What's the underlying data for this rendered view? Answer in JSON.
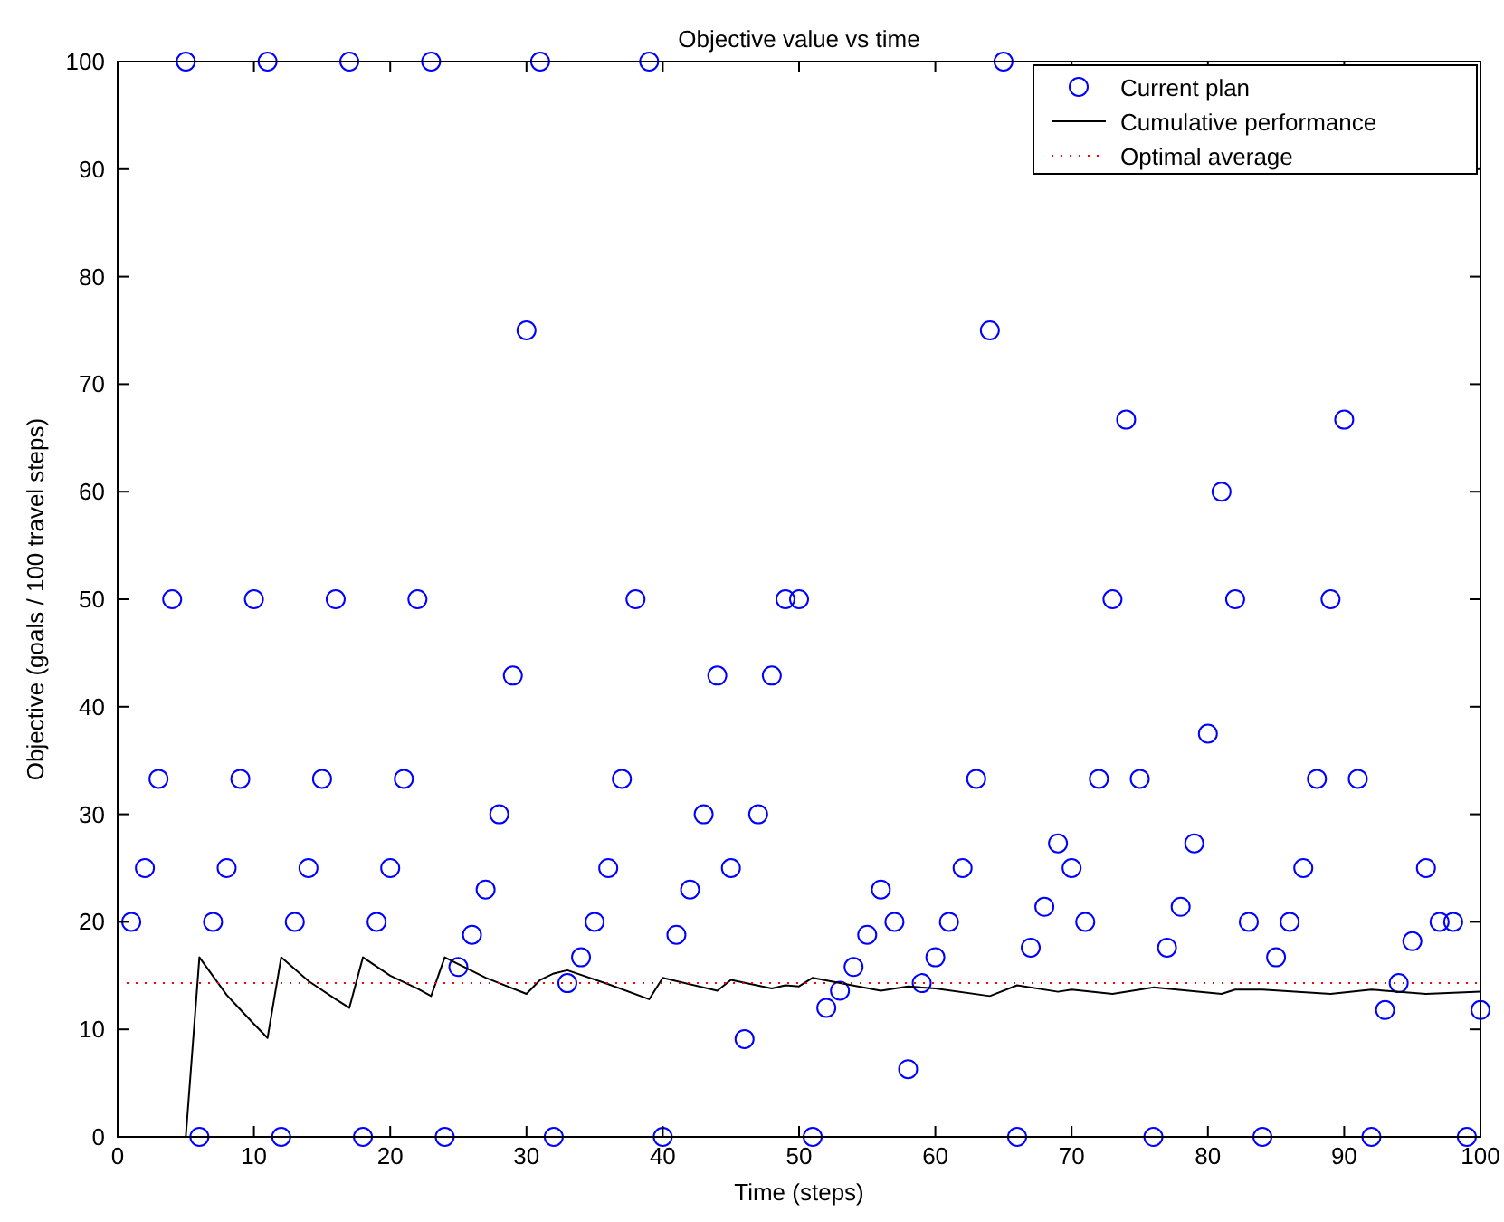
{
  "chart_data": {
    "type": "scatter",
    "title": "Objective value vs time",
    "xlabel": "Time (steps)",
    "ylabel": "Objective (goals / 100 travel steps)",
    "xlim": [
      0,
      100
    ],
    "ylim": [
      0,
      100
    ],
    "xticks": [
      0,
      10,
      20,
      30,
      40,
      50,
      60,
      70,
      80,
      90,
      100
    ],
    "yticks": [
      0,
      10,
      20,
      30,
      40,
      50,
      60,
      70,
      80,
      90,
      100
    ],
    "grid": false,
    "legend": "top right",
    "series": [
      {
        "name": "Current plan",
        "marker": "circle",
        "color": "#0000ff",
        "x": [
          1,
          2,
          3,
          4,
          5,
          6,
          7,
          8,
          9,
          10,
          11,
          12,
          13,
          14,
          15,
          16,
          17,
          18,
          19,
          20,
          21,
          22,
          23,
          24,
          25,
          26,
          27,
          28,
          29,
          30,
          31,
          32,
          33,
          34,
          35,
          36,
          37,
          38,
          39,
          40,
          41,
          42,
          43,
          44,
          45,
          46,
          47,
          48,
          49,
          50,
          51,
          52,
          53,
          54,
          55,
          56,
          57,
          58,
          59,
          60,
          61,
          62,
          63,
          64,
          65,
          66,
          67,
          68,
          69,
          70,
          71,
          72,
          73,
          74,
          75,
          76,
          77,
          78,
          79,
          80,
          81,
          82,
          83,
          84,
          85,
          86,
          87,
          88,
          89,
          90,
          91,
          92,
          93,
          94,
          95,
          96,
          97,
          98,
          99,
          100
        ],
        "values": [
          20,
          25,
          33.3,
          50,
          100,
          0,
          20,
          25,
          33.3,
          50,
          100,
          0,
          20,
          25,
          33.3,
          50,
          100,
          0,
          20,
          25,
          33.3,
          50,
          100,
          0,
          15.8,
          18.8,
          23,
          30,
          42.9,
          75,
          100,
          0,
          14.3,
          16.7,
          20,
          25,
          33.3,
          50,
          100,
          0,
          18.8,
          23,
          30,
          42.9,
          25,
          9.1,
          30,
          42.9,
          50,
          50,
          0,
          12,
          13.6,
          15.8,
          18.8,
          23,
          20,
          6.3,
          14.3,
          16.7,
          20,
          25,
          33.3,
          75,
          100,
          0,
          17.6,
          21.4,
          27.3,
          25,
          20,
          33.3,
          50,
          66.7,
          33.3,
          0,
          17.6,
          21.4,
          27.3,
          37.5,
          60,
          50,
          20,
          0,
          16.7,
          20,
          25,
          33.3,
          50,
          66.7,
          33.3,
          0,
          11.8,
          14.3,
          18.2,
          25,
          20,
          20,
          0,
          11.8
        ]
      },
      {
        "name": "Cumulative performance",
        "type": "line",
        "marker": "none",
        "line_style": "solid",
        "color": "#000000",
        "x": [
          5,
          6,
          8,
          10,
          11,
          12,
          14,
          16,
          17,
          18,
          20,
          22,
          23,
          24,
          27,
          30,
          31,
          32,
          33,
          36,
          39,
          40,
          44,
          45,
          48,
          49,
          50,
          51,
          56,
          58,
          60,
          64,
          66,
          69,
          70,
          73,
          76,
          81,
          82,
          84,
          89,
          92,
          96,
          100
        ],
        "values": [
          0,
          16.7,
          13.2,
          10.5,
          9.2,
          16.7,
          14.5,
          12.8,
          12,
          16.7,
          15,
          13.8,
          13.1,
          16.7,
          14.8,
          13.3,
          14.6,
          15.2,
          15.5,
          14.2,
          12.8,
          14.8,
          13.6,
          14.6,
          13.8,
          14.1,
          14,
          14.8,
          13.6,
          14,
          13.8,
          13.1,
          14.1,
          13.5,
          13.7,
          13.3,
          13.9,
          13.3,
          13.7,
          13.7,
          13.3,
          13.7,
          13.3,
          13.5
        ]
      },
      {
        "name": "Optimal average",
        "type": "line",
        "marker": "none",
        "line_style": "dotted",
        "color": "#ff0000",
        "x": [
          0,
          100
        ],
        "values": [
          14.3,
          14.3
        ]
      }
    ]
  }
}
